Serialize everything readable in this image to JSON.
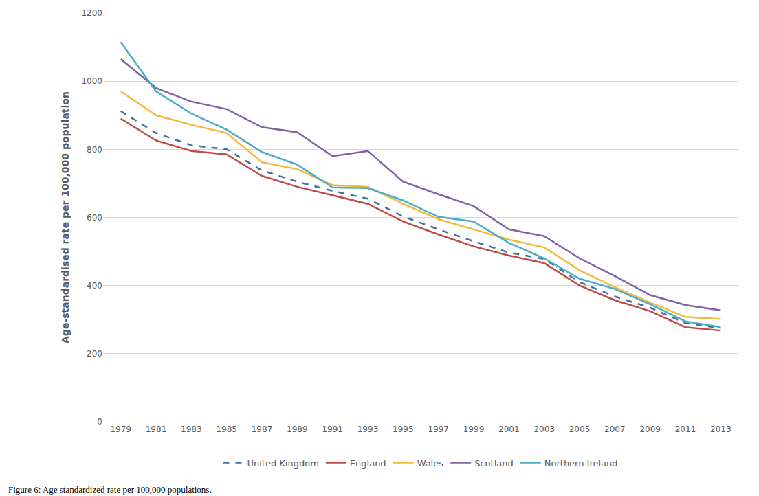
{
  "chart_data": {
    "type": "line",
    "caption": "Figure 6: Age standardized rate per 100,000 populations.",
    "y_label": "Age-standardised rate per 100,000 population",
    "categories": [
      "1979",
      "1981",
      "1983",
      "1985",
      "1987",
      "1989",
      "1991",
      "1993",
      "1995",
      "1997",
      "1999",
      "2001",
      "2003",
      "2005",
      "2007",
      "2009",
      "2011",
      "2013"
    ],
    "series": [
      {
        "name": "United Kingdom",
        "color": "#41719c",
        "line_style": "dashed",
        "values": [
          912,
          848,
          812,
          800,
          738,
          705,
          678,
          655,
          603,
          565,
          530,
          497,
          478,
          410,
          368,
          335,
          290,
          275
        ]
      },
      {
        "name": "England",
        "color": "#be4b48",
        "line_style": "solid",
        "values": [
          890,
          826,
          795,
          785,
          722,
          690,
          665,
          640,
          588,
          550,
          515,
          488,
          466,
          400,
          357,
          325,
          278,
          268
        ]
      },
      {
        "name": "Wales",
        "color": "#f4b83f",
        "line_style": "solid",
        "values": [
          970,
          900,
          872,
          848,
          762,
          742,
          695,
          690,
          640,
          595,
          565,
          535,
          512,
          445,
          395,
          350,
          308,
          302
        ]
      },
      {
        "name": "Scotland",
        "color": "#8064a2",
        "line_style": "solid",
        "values": [
          1065,
          980,
          940,
          918,
          865,
          850,
          780,
          795,
          705,
          668,
          633,
          565,
          545,
          480,
          428,
          372,
          343,
          327
        ]
      },
      {
        "name": "Northern Ireland",
        "color": "#4bacc6",
        "line_style": "solid",
        "values": [
          1115,
          970,
          905,
          858,
          792,
          755,
          688,
          686,
          650,
          602,
          588,
          525,
          480,
          420,
          390,
          345,
          295,
          278
        ]
      }
    ],
    "ylim": [
      0,
      1200
    ],
    "yticks": [
      0,
      200,
      400,
      600,
      800,
      1000,
      1200
    ],
    "grid": true,
    "legend": "bottom"
  }
}
